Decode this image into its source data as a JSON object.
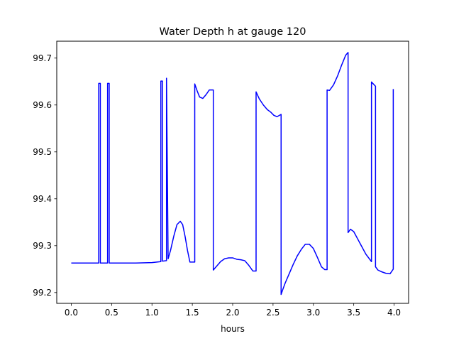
{
  "chart_data": {
    "type": "line",
    "title": "Water Depth h at gauge 120",
    "xlabel": "hours",
    "ylabel": "",
    "xlim": [
      -0.18,
      4.18
    ],
    "ylim": [
      99.177,
      99.736
    ],
    "xticks": [
      0.0,
      0.5,
      1.0,
      1.5,
      2.0,
      2.5,
      3.0,
      3.5,
      4.0
    ],
    "xtick_labels": [
      "0.0",
      "0.5",
      "1.0",
      "1.5",
      "2.0",
      "2.5",
      "3.0",
      "3.5",
      "4.0"
    ],
    "yticks": [
      99.2,
      99.3,
      99.4,
      99.5,
      99.6,
      99.7
    ],
    "ytick_labels": [
      "99.2",
      "99.3",
      "99.4",
      "99.5",
      "99.6",
      "99.7"
    ],
    "grid": false,
    "line_color": "#0000ff",
    "series": [
      {
        "x": [
          0.0,
          0.34,
          0.34,
          0.36,
          0.36,
          0.45,
          0.45,
          0.47,
          0.47,
          0.6,
          0.8,
          1.0,
          1.11,
          1.11,
          1.13,
          1.13,
          1.18,
          1.18,
          1.2,
          1.2,
          1.23,
          1.27,
          1.31,
          1.35,
          1.38,
          1.41,
          1.44,
          1.47,
          1.51,
          1.53,
          1.53,
          1.56,
          1.59,
          1.63,
          1.67,
          1.71,
          1.76,
          1.76,
          1.8,
          1.85,
          1.9,
          1.95,
          2.0,
          2.05,
          2.1,
          2.15,
          2.2,
          2.25,
          2.29,
          2.29,
          2.33,
          2.38,
          2.43,
          2.47,
          2.51,
          2.55,
          2.6,
          2.6,
          2.62,
          2.65,
          2.7,
          2.75,
          2.8,
          2.85,
          2.9,
          2.95,
          3.0,
          3.05,
          3.1,
          3.14,
          3.17,
          3.17,
          3.2,
          3.25,
          3.3,
          3.35,
          3.4,
          3.43,
          3.43,
          3.46,
          3.5,
          3.55,
          3.6,
          3.65,
          3.72,
          3.72,
          3.77,
          3.77,
          3.8,
          3.85,
          3.9,
          3.95,
          3.99,
          3.99
        ],
        "y": [
          99.263,
          99.263,
          99.646,
          99.646,
          99.263,
          99.263,
          99.646,
          99.646,
          99.263,
          99.263,
          99.263,
          99.264,
          99.266,
          99.651,
          99.651,
          99.267,
          99.268,
          99.657,
          99.272,
          99.272,
          99.29,
          99.32,
          99.345,
          99.352,
          99.345,
          99.32,
          99.29,
          99.265,
          99.265,
          99.265,
          99.645,
          99.63,
          99.617,
          99.614,
          99.622,
          99.632,
          99.632,
          99.248,
          99.256,
          99.266,
          99.272,
          99.274,
          99.274,
          99.271,
          99.27,
          99.268,
          99.258,
          99.246,
          99.246,
          99.628,
          99.613,
          99.6,
          99.59,
          99.585,
          99.578,
          99.575,
          99.58,
          99.196,
          99.206,
          99.22,
          99.24,
          99.26,
          99.278,
          99.292,
          99.303,
          99.303,
          99.294,
          99.275,
          99.255,
          99.249,
          99.249,
          99.632,
          99.631,
          99.643,
          99.662,
          99.685,
          99.706,
          99.712,
          99.328,
          99.335,
          99.33,
          99.314,
          99.298,
          99.282,
          99.266,
          99.649,
          99.64,
          99.255,
          99.248,
          99.244,
          99.241,
          99.24,
          99.25,
          99.634
        ]
      }
    ]
  }
}
